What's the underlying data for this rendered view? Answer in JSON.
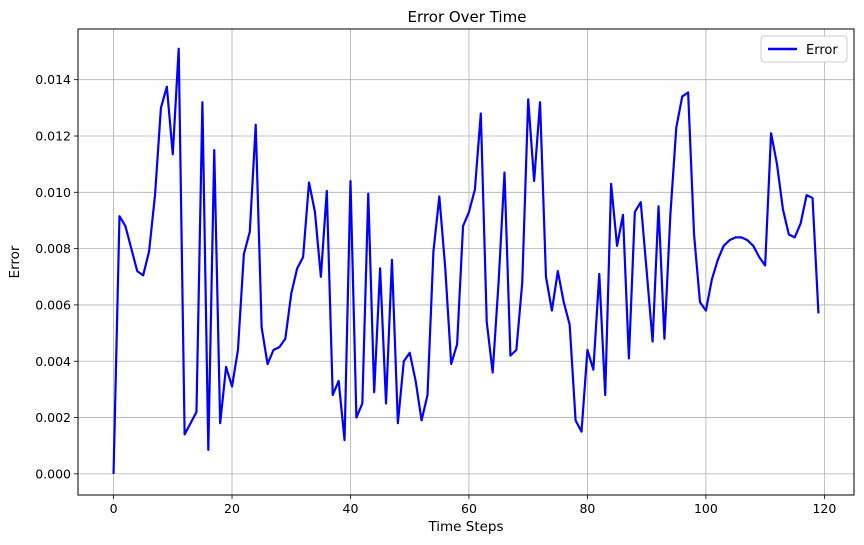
{
  "chart_data": {
    "type": "line",
    "title": "Error Over Time",
    "xlabel": "Time Steps",
    "ylabel": "Error",
    "xlim": [
      -6,
      125
    ],
    "ylim": [
      -0.00075,
      0.0158
    ],
    "xticks": [
      0,
      20,
      40,
      60,
      80,
      100,
      120
    ],
    "xtick_labels": [
      "0",
      "20",
      "40",
      "60",
      "80",
      "100",
      "120"
    ],
    "yticks": [
      0.0,
      0.002,
      0.004,
      0.006,
      0.008,
      0.01,
      0.012,
      0.014
    ],
    "ytick_labels": [
      "0.000",
      "0.002",
      "0.004",
      "0.006",
      "0.008",
      "0.010",
      "0.012",
      "0.014"
    ],
    "grid": true,
    "legend": {
      "position": "top-right",
      "entries": [
        "Error"
      ]
    },
    "series": [
      {
        "name": "Error",
        "color": "#0000ff",
        "x": [
          0,
          1,
          2,
          3,
          4,
          5,
          6,
          7,
          8,
          9,
          10,
          11,
          12,
          13,
          14,
          15,
          16,
          17,
          18,
          19,
          20,
          21,
          22,
          23,
          24,
          25,
          26,
          27,
          28,
          29,
          30,
          31,
          32,
          33,
          34,
          35,
          36,
          37,
          38,
          39,
          40,
          41,
          42,
          43,
          44,
          45,
          46,
          47,
          48,
          49,
          50,
          51,
          52,
          53,
          54,
          55,
          56,
          57,
          58,
          59,
          60,
          61,
          62,
          63,
          64,
          65,
          66,
          67,
          68,
          69,
          70,
          71,
          72,
          73,
          74,
          75,
          76,
          77,
          78,
          79,
          80,
          81,
          82,
          83,
          84,
          85,
          86,
          87,
          88,
          89,
          90,
          91,
          92,
          93,
          94,
          95,
          96,
          97,
          98,
          99,
          100,
          101,
          102,
          103,
          104,
          105,
          106,
          107,
          108,
          109,
          110,
          111,
          112,
          113,
          114,
          115,
          116,
          117,
          118,
          119
        ],
        "y": [
          0.0,
          0.00915,
          0.0088,
          0.008,
          0.0072,
          0.00705,
          0.0079,
          0.0099,
          0.013,
          0.01375,
          0.01135,
          0.0151,
          0.0014,
          0.0018,
          0.0022,
          0.0132,
          0.00085,
          0.0115,
          0.0018,
          0.0038,
          0.0031,
          0.0044,
          0.0078,
          0.0086,
          0.0124,
          0.0052,
          0.0039,
          0.0044,
          0.0045,
          0.0048,
          0.0064,
          0.0073,
          0.0077,
          0.01035,
          0.0093,
          0.007,
          0.01005,
          0.0028,
          0.0033,
          0.0012,
          0.0104,
          0.002,
          0.0025,
          0.00995,
          0.0029,
          0.0073,
          0.0025,
          0.0076,
          0.0018,
          0.004,
          0.0043,
          0.0033,
          0.0019,
          0.0028,
          0.0079,
          0.00985,
          0.0073,
          0.0039,
          0.0046,
          0.0088,
          0.0093,
          0.0101,
          0.0128,
          0.0054,
          0.0036,
          0.0068,
          0.0107,
          0.0042,
          0.0044,
          0.0068,
          0.0133,
          0.0104,
          0.0132,
          0.007,
          0.0058,
          0.0072,
          0.0061,
          0.0053,
          0.0019,
          0.0015,
          0.0044,
          0.0037,
          0.0071,
          0.0028,
          0.0103,
          0.0081,
          0.0092,
          0.0041,
          0.0093,
          0.00965,
          0.0072,
          0.0047,
          0.0095,
          0.0048,
          0.0092,
          0.0123,
          0.0134,
          0.01355,
          0.0085,
          0.0061,
          0.0058,
          0.0069,
          0.0076,
          0.0081,
          0.0083,
          0.0084,
          0.0084,
          0.0083,
          0.0081,
          0.0077,
          0.0074,
          0.0121,
          0.011,
          0.0094,
          0.0085,
          0.0084,
          0.0089,
          0.0099,
          0.0098,
          0.0057
        ]
      }
    ]
  }
}
